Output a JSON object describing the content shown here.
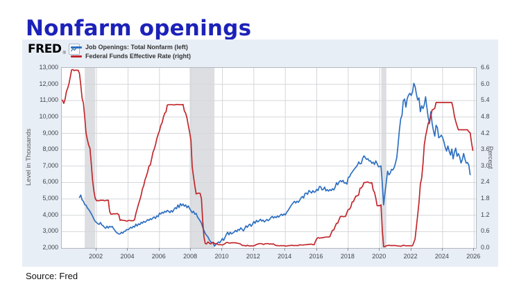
{
  "title": "Nonfarm openings",
  "source": "Source: Fred",
  "brand": {
    "name": "FRED",
    "reg": "®"
  },
  "colors": {
    "title": "#1c22b8",
    "card_bg": "#e8eef6",
    "blue": "#2d6fc1",
    "red": "#c1262b",
    "recession": "#dcdee1",
    "grid": "#d4d6d9"
  },
  "chart_data": {
    "type": "line",
    "title": "",
    "x_axis": {
      "range": [
        1999.79,
        2026.12
      ],
      "ticks": [
        2002,
        2004,
        2006,
        2008,
        2010,
        2012,
        2014,
        2016,
        2018,
        2020,
        2022,
        2024,
        2026
      ]
    },
    "left_axis": {
      "label": "Level in Thousands",
      "range": [
        2000,
        13000
      ],
      "tick_labels": [
        "13,000",
        "12,000",
        "11,000",
        "10,000",
        "9,000",
        "8,000",
        "7,000",
        "6,000",
        "5,000",
        "4,000",
        "3,000",
        "2,000"
      ]
    },
    "right_axis": {
      "label": "Percent",
      "range": [
        0.0,
        6.6
      ],
      "tick_labels": [
        "6.6",
        "6.0",
        "5.4",
        "4.8",
        "4.2",
        "3.6",
        "3.0",
        "2.4",
        "1.8",
        "1.2",
        "0.6",
        "0.0"
      ]
    },
    "recession_bands": [
      [
        2001.25,
        2001.92
      ],
      [
        2007.92,
        2009.5
      ],
      [
        2020.1,
        2020.42
      ]
    ],
    "grid": true,
    "legend_position": "top-left",
    "series": [
      {
        "name": "Job Openings: Total Nonfarm (left)",
        "axis": "left",
        "color": "#2d6fc1",
        "units": "thousands",
        "start": 2000.9167,
        "step_years": 0.083333,
        "values": [
          5088,
          5234,
          4942,
          4851,
          4646,
          4616,
          4445,
          4354,
          4229,
          4086,
          3942,
          3770,
          3630,
          3556,
          3486,
          3439,
          3556,
          3406,
          3361,
          3263,
          3196,
          3334,
          3214,
          3319,
          3278,
          3316,
          3175,
          3073,
          2962,
          2906,
          2855,
          2862,
          2957,
          2896,
          3013,
          3026,
          3128,
          3112,
          3174,
          3270,
          3212,
          3328,
          3274,
          3455,
          3347,
          3475,
          3422,
          3565,
          3512,
          3623,
          3566,
          3639,
          3734,
          3679,
          3791,
          3733,
          3840,
          3896,
          3801,
          3959,
          3911,
          4123,
          4071,
          4181,
          4123,
          4242,
          4187,
          4298,
          4243,
          4157,
          4286,
          4197,
          4339,
          4463,
          4394,
          4629,
          4465,
          4707,
          4584,
          4687,
          4549,
          4633,
          4459,
          4573,
          4403,
          4276,
          4157,
          4242,
          4066,
          4112,
          3890,
          3776,
          3656,
          3517,
          3254,
          3066,
          2879,
          2766,
          2673,
          2504,
          2376,
          2332,
          2298,
          2109,
          2210,
          2287,
          2368,
          2316,
          2440,
          2581,
          2460,
          2648,
          2835,
          2964,
          2802,
          2961,
          2857,
          2912,
          2979,
          3073,
          2994,
          3134,
          3085,
          3230,
          3145,
          3041,
          3177,
          3352,
          3256,
          3393,
          3459,
          3322,
          3456,
          3618,
          3511,
          3689,
          3594,
          3662,
          3757,
          3641,
          3704,
          3589,
          3663,
          3748,
          3668,
          3733,
          3858,
          3933,
          3829,
          3912,
          3852,
          3955,
          3882,
          3986,
          4068,
          3978,
          4083,
          4014,
          4174,
          4276,
          4408,
          4542,
          4651,
          4753,
          4853,
          4745,
          4862,
          4790,
          4913,
          5068,
          5147,
          5051,
          5328,
          5354,
          5275,
          5511,
          5441,
          5356,
          5500,
          5403,
          5441,
          5583,
          5506,
          5757,
          5736,
          5545,
          5578,
          5716,
          5486,
          5561,
          5471,
          5566,
          5505,
          5620,
          5540,
          5708,
          5986,
          5857,
          6039,
          6111,
          6049,
          6128,
          5962,
          5987,
          5899,
          6313,
          6339,
          6527,
          6637,
          6745,
          6847,
          6945,
          7058,
          7259,
          7131,
          7163,
          7479,
          7625,
          7517,
          7409,
          7452,
          7313,
          7324,
          7170,
          7236,
          7099,
          7317,
          7160,
          6968,
          6972,
          7012,
          5923,
          4630,
          5361,
          6001,
          6697,
          6464,
          6566,
          6802,
          6761,
          6903,
          7171,
          7508,
          8295,
          9193,
          9882,
          10110,
          10994,
          11098,
          10602,
          11125,
          11337,
          11448,
          11313,
          11512,
          12055,
          11855,
          11400,
          11042,
          11170,
          10321,
          10687,
          10512,
          10746,
          11234,
          10563,
          9974,
          9590,
          10320,
          9616,
          9165,
          8827,
          9497,
          9350,
          8733,
          8790,
          8889,
          8748,
          8488,
          8140,
          7919,
          8230,
          7910,
          7673,
          8040,
          7440,
          7839,
          8098,
          7600,
          7762,
          7568,
          7192,
          7395,
          7769,
          7437,
          7181,
          7227,
          7050,
          6480
        ]
      },
      {
        "name": "Federal Funds Effective Rate (right)",
        "axis": "right",
        "color": "#c1262b",
        "units": "percent",
        "start": 1999.8333,
        "step_years": 0.083333,
        "values": [
          5.42,
          5.3,
          5.45,
          5.73,
          5.85,
          6.02,
          6.27,
          6.53,
          6.54,
          6.5,
          6.52,
          6.51,
          6.51,
          6.4,
          5.98,
          5.49,
          5.31,
          4.8,
          4.21,
          3.97,
          3.77,
          3.65,
          3.07,
          2.49,
          2.09,
          1.82,
          1.73,
          1.74,
          1.73,
          1.75,
          1.75,
          1.75,
          1.73,
          1.74,
          1.75,
          1.75,
          1.34,
          1.24,
          1.24,
          1.26,
          1.25,
          1.26,
          1.26,
          1.22,
          1.01,
          1.03,
          1.01,
          1.01,
          1.0,
          0.98,
          1.0,
          1.01,
          1.0,
          1.0,
          1.0,
          1.03,
          1.26,
          1.43,
          1.61,
          1.76,
          1.93,
          2.16,
          2.28,
          2.5,
          2.63,
          2.79,
          3.0,
          3.04,
          3.26,
          3.5,
          3.62,
          3.78,
          4.0,
          4.16,
          4.29,
          4.49,
          4.59,
          4.79,
          4.94,
          4.99,
          5.24,
          5.25,
          5.25,
          5.25,
          5.25,
          5.24,
          5.25,
          5.26,
          5.26,
          5.25,
          5.25,
          5.25,
          5.26,
          5.02,
          4.94,
          4.76,
          4.49,
          4.24,
          3.94,
          2.98,
          2.61,
          2.28,
          1.98,
          2.0,
          2.01,
          2.0,
          1.81,
          0.97,
          0.39,
          0.16,
          0.15,
          0.22,
          0.18,
          0.15,
          0.18,
          0.21,
          0.16,
          0.16,
          0.15,
          0.12,
          0.12,
          0.12,
          0.11,
          0.13,
          0.16,
          0.2,
          0.2,
          0.18,
          0.18,
          0.19,
          0.19,
          0.19,
          0.19,
          0.18,
          0.17,
          0.16,
          0.14,
          0.1,
          0.09,
          0.09,
          0.07,
          0.1,
          0.08,
          0.07,
          0.08,
          0.07,
          0.08,
          0.1,
          0.13,
          0.14,
          0.16,
          0.16,
          0.16,
          0.13,
          0.14,
          0.16,
          0.16,
          0.16,
          0.14,
          0.15,
          0.14,
          0.15,
          0.11,
          0.09,
          0.09,
          0.08,
          0.08,
          0.09,
          0.08,
          0.09,
          0.07,
          0.07,
          0.08,
          0.09,
          0.09,
          0.1,
          0.09,
          0.09,
          0.09,
          0.09,
          0.09,
          0.12,
          0.11,
          0.11,
          0.11,
          0.12,
          0.12,
          0.13,
          0.13,
          0.14,
          0.14,
          0.12,
          0.12,
          0.24,
          0.34,
          0.38,
          0.36,
          0.37,
          0.37,
          0.38,
          0.39,
          0.4,
          0.4,
          0.4,
          0.41,
          0.54,
          0.65,
          0.66,
          0.79,
          0.9,
          0.91,
          1.04,
          1.15,
          1.16,
          1.15,
          1.15,
          1.16,
          1.3,
          1.41,
          1.42,
          1.51,
          1.69,
          1.7,
          1.82,
          1.91,
          1.91,
          1.95,
          2.19,
          2.2,
          2.27,
          2.4,
          2.4,
          2.41,
          2.42,
          2.39,
          2.38,
          2.4,
          2.13,
          2.04,
          1.83,
          1.55,
          1.55,
          1.55,
          1.58,
          0.65,
          0.05,
          0.05,
          0.08,
          0.09,
          0.1,
          0.09,
          0.09,
          0.09,
          0.09,
          0.09,
          0.08,
          0.07,
          0.07,
          0.06,
          0.08,
          0.1,
          0.09,
          0.08,
          0.08,
          0.08,
          0.08,
          0.08,
          0.08,
          0.2,
          0.33,
          0.77,
          1.21,
          1.68,
          2.33,
          2.56,
          3.08,
          3.78,
          4.1,
          4.33,
          4.57,
          4.65,
          4.83,
          5.06,
          5.08,
          5.12,
          5.33,
          5.33,
          5.33,
          5.33,
          5.33,
          5.33,
          5.33,
          5.33,
          5.33,
          5.33,
          5.33,
          5.33,
          5.33,
          5.13,
          4.83,
          4.64,
          4.48,
          4.33,
          4.33,
          4.33,
          4.33,
          4.33,
          4.33,
          4.33,
          4.33,
          4.26,
          4.22,
          3.88,
          3.58
        ]
      }
    ]
  }
}
